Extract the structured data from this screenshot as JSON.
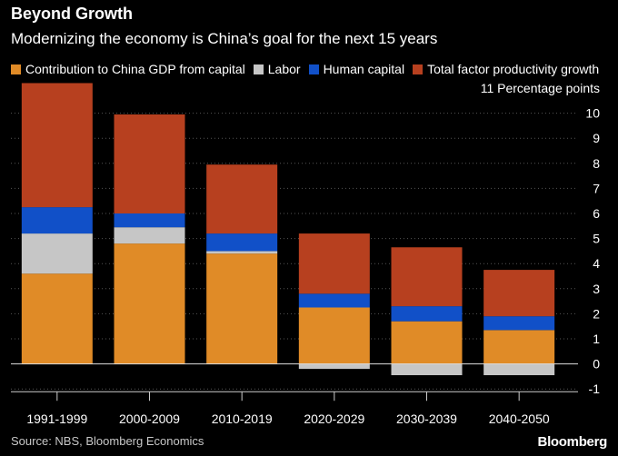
{
  "title": "Beyond Growth",
  "subtitle": "Modernizing the economy is China’s goal for the next 15 years",
  "colors": {
    "background": "#000000",
    "capital": "#e08b27",
    "labor": "#c6c6c6",
    "human_capital": "#1150c8",
    "tfp": "#b7401f",
    "axis_line": "#dddddd",
    "grid": "#555555"
  },
  "chart_data": {
    "type": "bar",
    "stacked": true,
    "categories": [
      "1991-1999",
      "2000-2009",
      "2010-2019",
      "2020-2029",
      "2030-2039",
      "2040-2050"
    ],
    "series": [
      {
        "name": "Contribution to China GDP from capital",
        "color": "#e08b27",
        "values": [
          3.6,
          4.8,
          4.4,
          2.25,
          1.7,
          1.35
        ]
      },
      {
        "name": "Labor",
        "color": "#c6c6c6",
        "values": [
          1.6,
          0.65,
          0.1,
          -0.2,
          -0.45,
          -0.45
        ]
      },
      {
        "name": "Human capital",
        "color": "#1150c8",
        "values": [
          1.05,
          0.55,
          0.7,
          0.55,
          0.6,
          0.55
        ]
      },
      {
        "name": "Total factor productivity growth",
        "color": "#b7401f",
        "values": [
          4.95,
          3.95,
          2.75,
          2.4,
          2.35,
          1.85
        ]
      }
    ],
    "ylabel": "Percentage points",
    "ylim": [
      -1,
      11
    ],
    "yticks": [
      "11 Percentage points",
      "10",
      "9",
      "8",
      "7",
      "6",
      "5",
      "4",
      "3",
      "2",
      "1",
      "0",
      "-1"
    ],
    "grid": true,
    "legend_position": "top"
  },
  "footer": {
    "source": "Source: NBS, Bloomberg Economics",
    "brand": "Bloomberg"
  }
}
